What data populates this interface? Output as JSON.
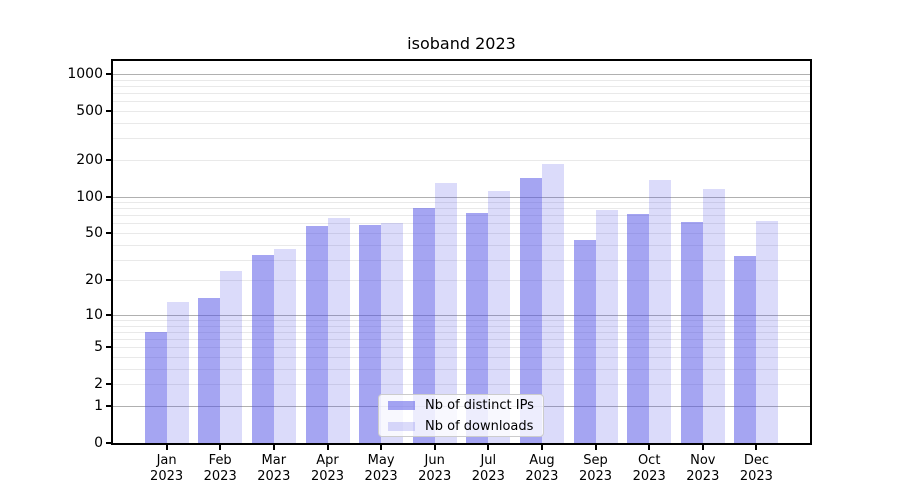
{
  "title": "isoband 2023",
  "chart_data": {
    "type": "bar",
    "title": "isoband 2023",
    "yscale": "log1p",
    "grid": true,
    "legend_position": "inside-bottom-center",
    "categories": [
      {
        "month": "Jan",
        "year": "2023"
      },
      {
        "month": "Feb",
        "year": "2023"
      },
      {
        "month": "Mar",
        "year": "2023"
      },
      {
        "month": "Apr",
        "year": "2023"
      },
      {
        "month": "May",
        "year": "2023"
      },
      {
        "month": "Jun",
        "year": "2023"
      },
      {
        "month": "Jul",
        "year": "2023"
      },
      {
        "month": "Aug",
        "year": "2023"
      },
      {
        "month": "Sep",
        "year": "2023"
      },
      {
        "month": "Oct",
        "year": "2023"
      },
      {
        "month": "Nov",
        "year": "2023"
      },
      {
        "month": "Dec",
        "year": "2023"
      }
    ],
    "series": [
      {
        "name": "Nb of distinct IPs",
        "color": "rgba(75,75,230,0.5)",
        "values": [
          7,
          14,
          33,
          57,
          58,
          80,
          73,
          143,
          44,
          72,
          62,
          32
        ]
      },
      {
        "name": "Nb of downloads",
        "color": "rgba(75,75,230,0.2)",
        "values": [
          13,
          24,
          37,
          67,
          60,
          130,
          110,
          184,
          78,
          137,
          116,
          63
        ]
      }
    ],
    "yticks": [
      {
        "label": "1000",
        "value": 1000
      },
      {
        "label": "500",
        "value": 500
      },
      {
        "label": "200",
        "value": 200
      },
      {
        "label": "100",
        "value": 100
      },
      {
        "label": "50",
        "value": 50
      },
      {
        "label": "20",
        "value": 20
      },
      {
        "label": "10",
        "value": 10
      },
      {
        "label": "5",
        "value": 5
      },
      {
        "label": "2",
        "value": 2
      },
      {
        "label": "1",
        "value": 1
      },
      {
        "label": "0",
        "value": 0
      }
    ],
    "major_gridline_values": [
      1,
      10,
      100,
      1000
    ],
    "minor_gridline_values": [
      2,
      3,
      4,
      5,
      6,
      7,
      8,
      9,
      20,
      30,
      40,
      50,
      60,
      70,
      80,
      90,
      200,
      300,
      400,
      500,
      600,
      700,
      800,
      900
    ]
  },
  "colors": {
    "major_grid": "#b0b0b0",
    "minor_grid": "#e9e9e9",
    "axis": "#000000",
    "text": "#000000",
    "legend_border": "#cccccc",
    "legend_background": "rgba(255,255,255,0.8)",
    "background": "#ffffff"
  }
}
